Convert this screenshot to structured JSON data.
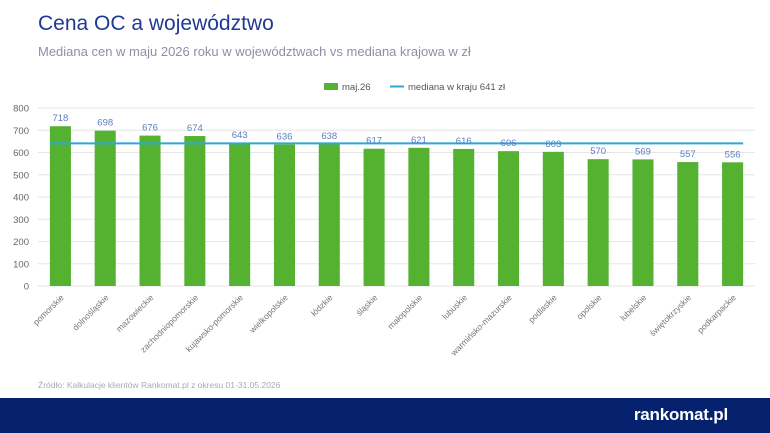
{
  "header": {
    "title": "Cena OC a województwo",
    "subtitle": "Mediana cen w maju 2026 roku w województwach vs mediana krajowa w zł"
  },
  "source": "Źródło: Kalkulacje klientów Rankomat.pl z okresu 01-31.05.2026",
  "brand": {
    "logo_text": "rankomat.pl"
  },
  "colors": {
    "bar": "#55b231",
    "median_line": "#2aa8d8",
    "label": "#5a7fc4",
    "footer": "#06216e"
  },
  "chart_data": {
    "type": "bar",
    "categories": [
      "pomorskie",
      "dolnośląskie",
      "mazowieckie",
      "zachodniopomorskie",
      "kujawsko-pomorskie",
      "wielkopolskie",
      "łódzkie",
      "śląskie",
      "małopolskie",
      "lubuskie",
      "warmińsko-mazurskie",
      "podlaskie",
      "opolskie",
      "lubelskie",
      "świętokrzyskie",
      "podkarpackie"
    ],
    "series": [
      {
        "name": "maj.26",
        "values": [
          718,
          698,
          676,
          674,
          643,
          636,
          638,
          617,
          621,
          616,
          606,
          603,
          570,
          569,
          557,
          556
        ]
      }
    ],
    "reference_line": {
      "name": "mediana w kraju 641 zł",
      "value": 641
    },
    "ylim": [
      0,
      800
    ],
    "yticks": [
      0,
      100,
      200,
      300,
      400,
      500,
      600,
      700,
      800
    ],
    "grid": true,
    "legend": "top-center"
  }
}
